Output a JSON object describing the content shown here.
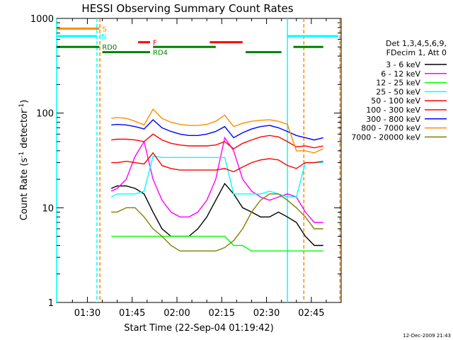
{
  "chart_data": {
    "type": "line",
    "title": "HESSI Observing Summary Count Rates",
    "xlabel": "Start Time (22-Sep-04 01:19:42)",
    "ylabel_main": "Count Rate (s",
    "ylabel_sup1": "-1",
    "ylabel_mid": " detector",
    "ylabel_sup2": "-1",
    "ylabel_end": ")",
    "yscale": "log",
    "ylim": [
      1,
      1000
    ],
    "xlim_minutes": [
      79.7,
      175
    ],
    "x_ticks": [
      {
        "label": "01:30",
        "minute": 90
      },
      {
        "label": "01:45",
        "minute": 105
      },
      {
        "label": "02:00",
        "minute": 120
      },
      {
        "label": "02:15",
        "minute": 135
      },
      {
        "label": "02:30",
        "minute": 150
      },
      {
        "label": "02:45",
        "minute": 165
      }
    ],
    "y_ticks": [
      {
        "label": "1",
        "value": 1
      },
      {
        "label": "10",
        "value": 10
      },
      {
        "label": "100",
        "value": 100
      },
      {
        "label": "1000",
        "value": 1000
      }
    ],
    "legend_header": [
      "Det 1,3,4,5,6,9,",
      "FDecim 1, Att 0"
    ],
    "series": [
      {
        "name": "3 - 6 keV",
        "color": "#000000",
        "t": [
          98,
          100,
          103,
          106,
          109,
          112,
          115,
          118,
          121,
          124,
          127,
          130,
          133,
          136,
          139,
          142,
          145,
          148,
          151,
          154,
          157,
          160,
          163,
          166,
          169
        ],
        "values": [
          16,
          17,
          17,
          16,
          14,
          9,
          6,
          5,
          5,
          5,
          6,
          8,
          12,
          18,
          14,
          10,
          9,
          8,
          8,
          9,
          8,
          7,
          5,
          4,
          4
        ]
      },
      {
        "name": "6 - 12 keV",
        "color": "#ff00ff",
        "t": [
          98,
          100,
          103,
          106,
          109,
          112,
          115,
          118,
          121,
          124,
          127,
          130,
          133,
          136,
          139,
          142,
          145,
          148,
          151,
          154,
          157,
          160,
          163,
          166,
          169
        ],
        "values": [
          15,
          16,
          20,
          35,
          50,
          20,
          12,
          9,
          8,
          8,
          9,
          12,
          20,
          55,
          40,
          20,
          15,
          13,
          12,
          13,
          14,
          13,
          9,
          7,
          7
        ]
      },
      {
        "name": "12 - 25 keV",
        "color": "#00ff00",
        "t": [
          98,
          100,
          103,
          106,
          109,
          112,
          115,
          118,
          121,
          124,
          127,
          130,
          133,
          136,
          139,
          142,
          145,
          148,
          151,
          154,
          157,
          160,
          163,
          166,
          169
        ],
        "values": [
          5,
          5,
          5,
          5,
          5,
          5,
          5,
          5,
          5,
          5,
          5,
          5,
          5,
          5,
          4,
          4,
          3.5,
          3.5,
          3.5,
          3.5,
          3.5,
          3.5,
          3.5,
          3.5,
          3.5
        ]
      },
      {
        "name": "25 - 50 keV",
        "color": "#00ffff",
        "t": [
          98,
          100,
          103,
          106,
          109,
          112,
          115,
          118,
          121,
          124,
          127,
          130,
          133,
          136,
          139,
          142,
          145,
          148,
          151,
          154,
          157,
          160,
          163,
          166,
          169
        ],
        "values": [
          13,
          14,
          14,
          14,
          15,
          35,
          34,
          34,
          34,
          34,
          34,
          34,
          34,
          34,
          14,
          14,
          14,
          14,
          15,
          14,
          13,
          13,
          30,
          30,
          30
        ]
      },
      {
        "name": "50 - 100 keV",
        "color": "#ff0000",
        "t": [
          98,
          100,
          103,
          106,
          109,
          112,
          115,
          118,
          121,
          124,
          127,
          130,
          133,
          136,
          139,
          142,
          145,
          148,
          151,
          154,
          157,
          160,
          163,
          166,
          169
        ],
        "values": [
          52,
          53,
          53,
          52,
          50,
          60,
          52,
          48,
          46,
          45,
          45,
          45,
          46,
          50,
          42,
          48,
          52,
          56,
          58,
          56,
          50,
          44,
          45,
          43,
          45
        ]
      },
      {
        "name": "100 - 300 keV",
        "color": "#ff0000",
        "t": [
          98,
          100,
          103,
          106,
          109,
          112,
          115,
          118,
          121,
          124,
          127,
          130,
          133,
          136,
          139,
          142,
          145,
          148,
          151,
          154,
          157,
          160,
          163,
          166,
          169
        ],
        "values": [
          30,
          30,
          31,
          30,
          29,
          38,
          28,
          26,
          25,
          25,
          25,
          25,
          25,
          26,
          24,
          27,
          30,
          32,
          33,
          32,
          28,
          26,
          30,
          30,
          31
        ]
      },
      {
        "name": "300 - 800 keV",
        "color": "#0000ff",
        "t": [
          98,
          100,
          103,
          106,
          109,
          112,
          115,
          118,
          121,
          124,
          127,
          130,
          133,
          136,
          139,
          142,
          145,
          148,
          151,
          154,
          157,
          160,
          163,
          166,
          169
        ],
        "values": [
          75,
          76,
          75,
          72,
          68,
          85,
          70,
          64,
          60,
          58,
          58,
          60,
          64,
          72,
          55,
          62,
          68,
          72,
          74,
          70,
          64,
          58,
          55,
          52,
          55
        ]
      },
      {
        "name": "800 - 7000 keV",
        "color": "#ff8c00",
        "t": [
          98,
          100,
          103,
          106,
          109,
          112,
          115,
          118,
          121,
          124,
          127,
          130,
          133,
          136,
          139,
          142,
          145,
          148,
          151,
          154,
          157,
          160,
          163,
          166,
          169
        ],
        "values": [
          88,
          90,
          88,
          82,
          75,
          110,
          88,
          80,
          76,
          74,
          74,
          76,
          82,
          95,
          72,
          78,
          82,
          84,
          85,
          82,
          76,
          40,
          40,
          38,
          42
        ]
      },
      {
        "name": "7000 - 20000 keV",
        "color": "#808000",
        "t": [
          98,
          100,
          103,
          106,
          109,
          112,
          115,
          118,
          121,
          124,
          127,
          130,
          133,
          136,
          139,
          142,
          145,
          148,
          151,
          154,
          157,
          160,
          163,
          166,
          169
        ],
        "values": [
          9,
          9,
          10,
          10,
          8,
          6,
          5,
          4,
          3.5,
          3.5,
          3.5,
          3.5,
          3.5,
          3.8,
          4.5,
          6,
          9,
          12,
          14,
          14,
          12,
          10,
          8,
          6,
          6
        ]
      }
    ],
    "flags": [
      {
        "label": "S",
        "color": "#ff8c00",
        "level": 780,
        "segments": [
          [
            79.7,
            94
          ]
        ]
      },
      {
        "label": "IN",
        "color": "#00ffff",
        "level": 650,
        "segments": [
          [
            79.7,
            93
          ],
          [
            157,
            174
          ]
        ]
      },
      {
        "label": "F",
        "color": "#ff0000",
        "level": 560,
        "segments": [
          [
            107,
            111
          ],
          [
            131,
            142
          ]
        ]
      },
      {
        "label": "RD0",
        "color": "#008000",
        "level": 500,
        "segments": [
          [
            79.7,
            94
          ],
          [
            112,
            133
          ],
          [
            159,
            169
          ]
        ]
      },
      {
        "label": "RD4",
        "color": "#008000",
        "level": 440,
        "segments": [
          [
            95,
            111
          ],
          [
            143,
            155
          ]
        ]
      }
    ],
    "vlines": [
      {
        "minute": 79.7,
        "color": "#00ffff",
        "style": "solid"
      },
      {
        "minute": 93.2,
        "color": "#00ffff",
        "style": "dashed"
      },
      {
        "minute": 94.2,
        "color": "#ff8c00",
        "style": "dashed"
      },
      {
        "minute": 157,
        "color": "#00ffff",
        "style": "solid"
      },
      {
        "minute": 162.5,
        "color": "#ff8c00",
        "style": "dashed"
      },
      {
        "minute": 174.6,
        "color": "#ff8c00",
        "style": "dashed"
      }
    ]
  },
  "footer": {
    "timestamp": "12-Dec-2009 21:43"
  }
}
